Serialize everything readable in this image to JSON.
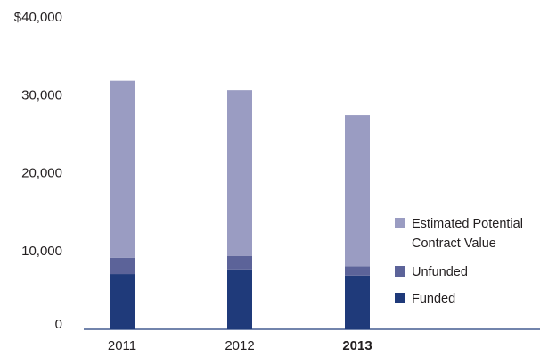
{
  "chart_data": {
    "type": "bar",
    "stacked": true,
    "categories": [
      "2011",
      "2012",
      "2013"
    ],
    "category_bold": [
      false,
      false,
      true
    ],
    "series": [
      {
        "name": "Funded",
        "values": [
          7100,
          7700,
          6900
        ],
        "color": "#1f3a7a"
      },
      {
        "name": "Unfunded",
        "values": [
          2100,
          1700,
          1200
        ],
        "color": "#5c6399"
      },
      {
        "name": "Estimated Potential Contract Value",
        "values": [
          22700,
          21300,
          19400
        ],
        "color": "#9a9cc2"
      }
    ],
    "ylim": [
      0,
      40000
    ],
    "yticks": [
      {
        "value": 0,
        "label": "0"
      },
      {
        "value": 10000,
        "label": "10,000"
      },
      {
        "value": 20000,
        "label": "20,000"
      },
      {
        "value": 30000,
        "label": "30,000"
      },
      {
        "value": 40000,
        "label": "$40,000"
      }
    ],
    "legend": {
      "placement": "right",
      "order": [
        "Estimated Potential Contract Value",
        "Unfunded",
        "Funded"
      ],
      "items": [
        {
          "lines": [
            "Estimated Potential",
            "Contract Value"
          ],
          "color": "#9a9cc2"
        },
        {
          "lines": [
            "Unfunded"
          ],
          "color": "#5c6399"
        },
        {
          "lines": [
            "Funded"
          ],
          "color": "#1f3a7a"
        }
      ]
    },
    "grid": false,
    "title": "",
    "xlabel": "",
    "ylabel": ""
  }
}
